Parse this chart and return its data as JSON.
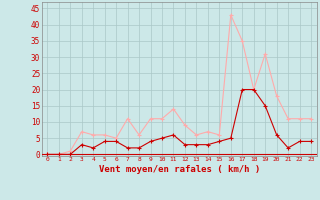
{
  "x": [
    0,
    1,
    2,
    3,
    4,
    5,
    6,
    7,
    8,
    9,
    10,
    11,
    12,
    13,
    14,
    15,
    16,
    17,
    18,
    19,
    20,
    21,
    22,
    23
  ],
  "rafales": [
    0,
    0,
    1,
    7,
    6,
    6,
    5,
    11,
    6,
    11,
    11,
    14,
    9,
    6,
    7,
    6,
    43,
    35,
    20,
    31,
    18,
    11,
    11,
    11
  ],
  "moyen": [
    0,
    0,
    0,
    3,
    2,
    4,
    4,
    2,
    2,
    4,
    5,
    6,
    3,
    3,
    3,
    4,
    5,
    20,
    20,
    15,
    6,
    2,
    4,
    4
  ],
  "color_rafales": "#ffaaaa",
  "color_moyen": "#cc0000",
  "bg_color": "#cce8e8",
  "grid_color": "#aac8c8",
  "xlabel": "Vent moyen/en rafales ( km/h )",
  "xlabel_color": "#cc0000",
  "tick_color": "#cc0000",
  "ytick_color": "#cc0000",
  "yticks": [
    0,
    5,
    10,
    15,
    20,
    25,
    30,
    35,
    40,
    45
  ],
  "xticks": [
    0,
    1,
    2,
    3,
    4,
    5,
    6,
    7,
    8,
    9,
    10,
    11,
    12,
    13,
    14,
    15,
    16,
    17,
    18,
    19,
    20,
    21,
    22,
    23
  ],
  "ylim": [
    -0.5,
    47
  ],
  "xlim": [
    -0.5,
    23.5
  ]
}
